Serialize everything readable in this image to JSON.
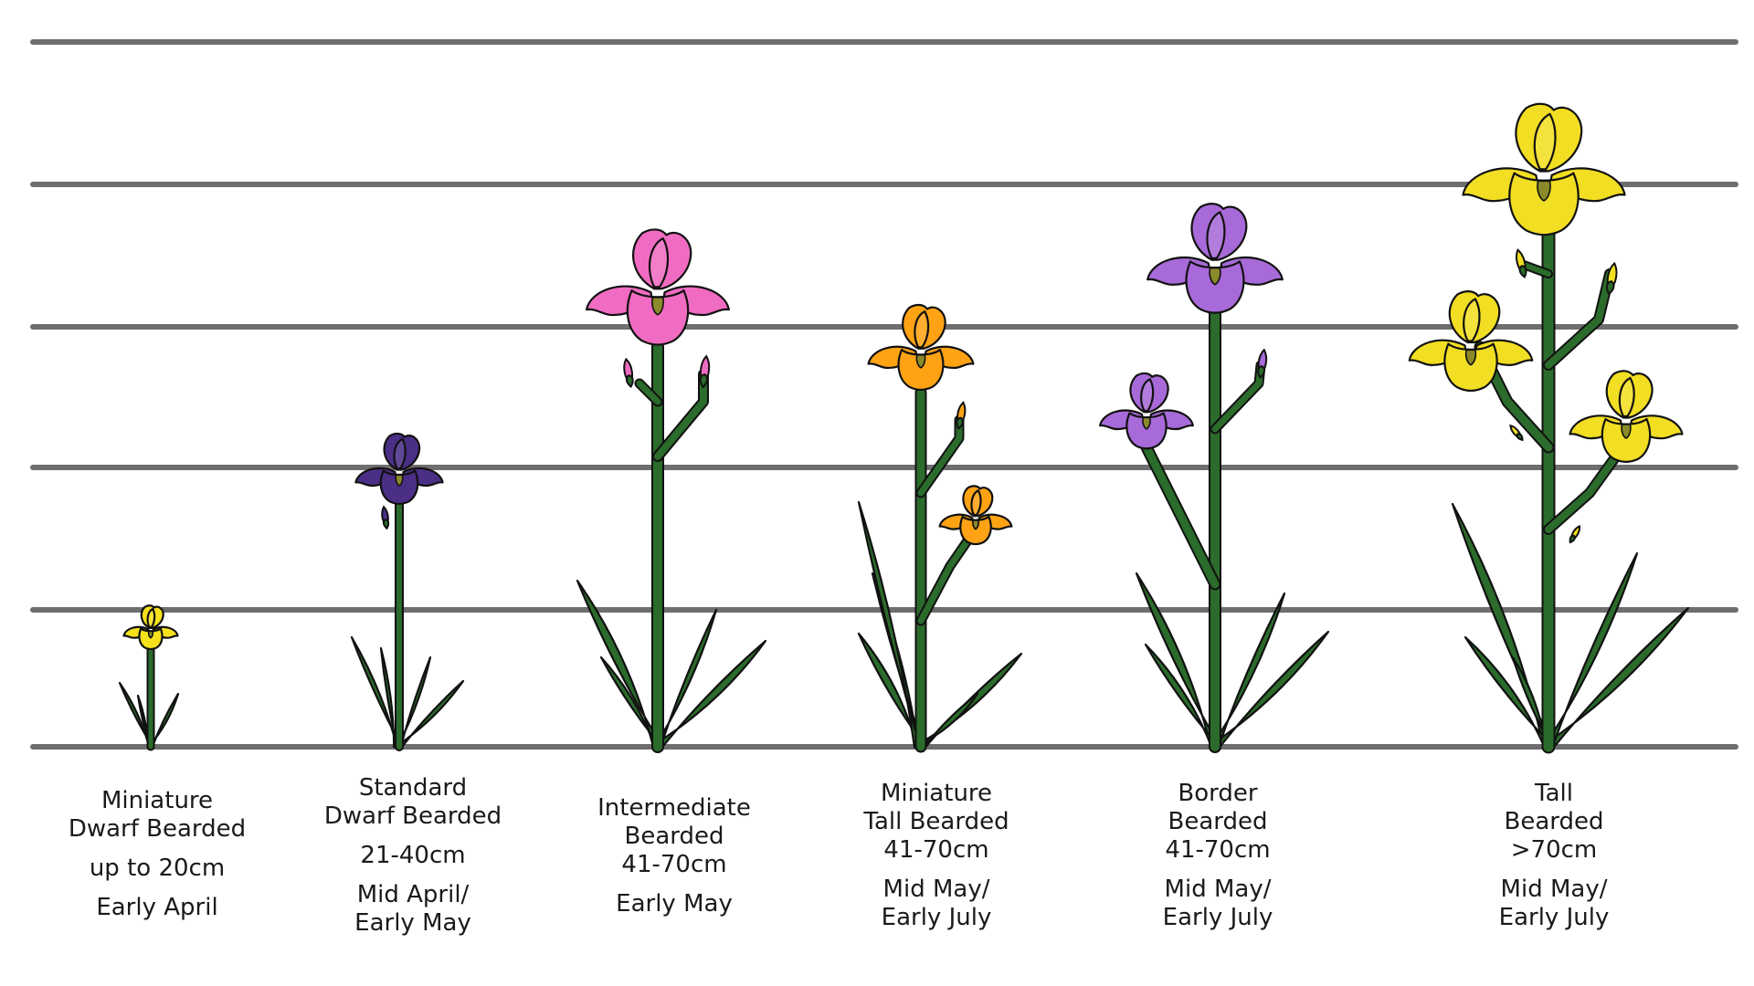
{
  "scale_lines": 6,
  "varieties": [
    {
      "name_lines": [
        "Miniature",
        "Dwarf Bearded"
      ],
      "height": "up to 20cm",
      "bloom_lines": [
        "Early April"
      ],
      "flower_color": "#f4e11c",
      "flowers": 1
    },
    {
      "name_lines": [
        "Standard",
        "Dwarf Bearded"
      ],
      "height": "21-40cm",
      "bloom_lines": [
        "Mid April/",
        "Early May"
      ],
      "flower_color": "#4b2e86",
      "flowers": 1
    },
    {
      "name_lines": [
        "Intermediate",
        "Bearded"
      ],
      "height": "41-70cm",
      "bloom_lines": [
        "Early May"
      ],
      "flower_color": "#f06cc2",
      "flowers": 1
    },
    {
      "name_lines": [
        "Miniature",
        "Tall Bearded"
      ],
      "height": "41-70cm",
      "bloom_lines": [
        "Mid May/",
        "Early July"
      ],
      "flower_color": "#ffa314",
      "flowers": 2
    },
    {
      "name_lines": [
        "Border",
        "Bearded"
      ],
      "height": "41-70cm",
      "bloom_lines": [
        "Mid May/",
        "Early July"
      ],
      "flower_color": "#a86ad8",
      "flowers": 2
    },
    {
      "name_lines": [
        "Tall",
        "Bearded"
      ],
      "height": ">70cm",
      "bloom_lines": [
        "Mid May/",
        "Early July"
      ],
      "flower_color": "#f2de22",
      "flowers": 3
    }
  ],
  "colors": {
    "stem": "#2b6b2b",
    "outline": "#111111",
    "scale_line": "#6e6e6e",
    "beard": "#8a8a2a"
  }
}
